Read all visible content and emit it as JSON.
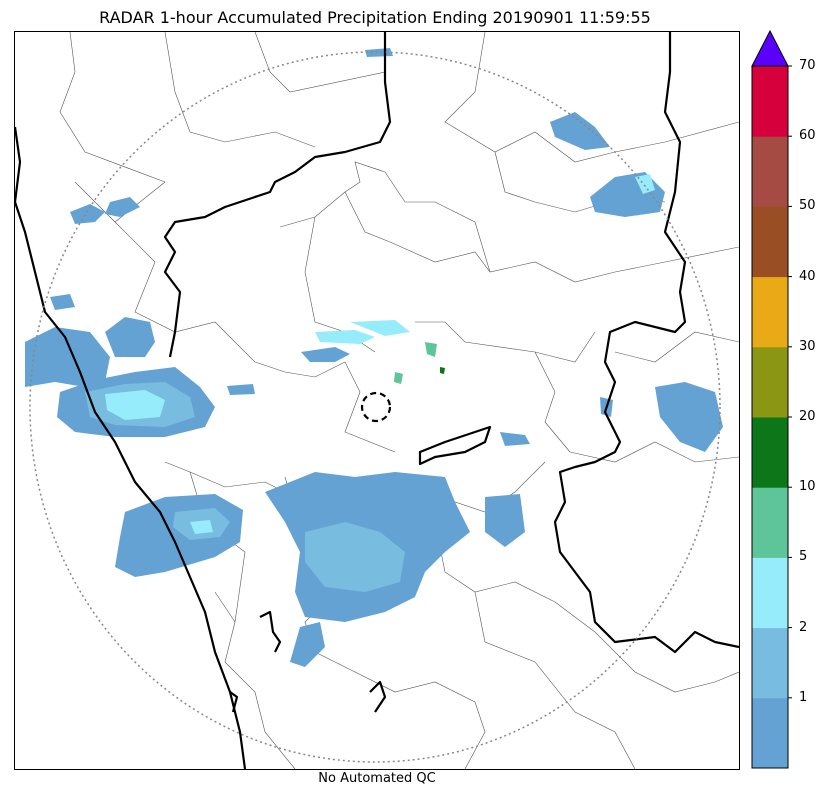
{
  "title": "RADAR 1-hour Accumulated Precipitation Ending 20190901 11:59:55",
  "footer_note": "No Automated QC",
  "colorbar": {
    "ticks": [
      "1",
      "2",
      "5",
      "10",
      "20",
      "30",
      "40",
      "50",
      "60",
      "70"
    ],
    "colors": [
      "#64a2d4",
      "#78bce0",
      "#96ecfa",
      "#5ec49a",
      "#0c7618",
      "#8a9614",
      "#e8aa16",
      "#9a4e24",
      "#a64a44",
      "#d6003c"
    ],
    "extend_color": "#5a00ff"
  },
  "map": {
    "radar_range_ring": "dotted",
    "radar_site_marker": "dashed-circle",
    "legend_units_note": ""
  }
}
